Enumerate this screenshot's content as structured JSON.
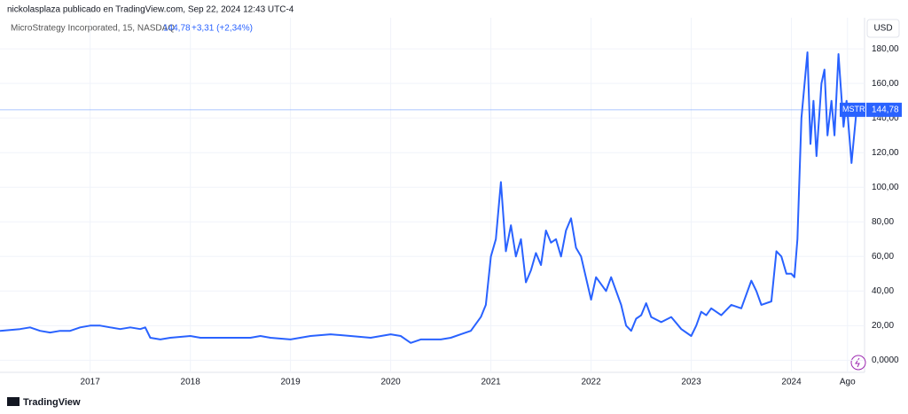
{
  "header": {
    "publisher": "nickolasplaza publicado en TradingView.com, Sep 22, 2024 12:43 UTC-4",
    "instrument": "MicroStrategy Incorporated, 15, NASDAQ",
    "last": "144,78",
    "change": "+3,31 (+2,34%)",
    "currency": "USD",
    "symbol": "MSTR",
    "price_label": "144,78",
    "brand": "TradingView"
  },
  "chart_data": {
    "type": "line",
    "color": "#2962ff",
    "grid": true,
    "last_value": 144.78,
    "xlim": [
      2016.1,
      2024.73
    ],
    "xticks": [
      2017,
      2018,
      2019,
      2020,
      2021,
      2022,
      2023,
      2024,
      {
        "value": 2024.56,
        "label": "Ago"
      }
    ],
    "ylim": [
      -7,
      198
    ],
    "yticks": [
      {
        "value": 0,
        "label": "0,0000"
      },
      {
        "value": 20,
        "label": "20,00"
      },
      {
        "value": 40,
        "label": "40,00"
      },
      {
        "value": 60,
        "label": "60,00"
      },
      {
        "value": 80,
        "label": "80,00"
      },
      {
        "value": 100,
        "label": "100,00"
      },
      {
        "value": 120,
        "label": "120,00"
      },
      {
        "value": 140,
        "label": "140,00"
      },
      {
        "value": 160,
        "label": "160,00"
      },
      {
        "value": 180,
        "label": "180,00"
      }
    ],
    "x": [
      2016.1,
      2016.3,
      2016.4,
      2016.5,
      2016.6,
      2016.7,
      2016.8,
      2016.9,
      2017.0,
      2017.1,
      2017.2,
      2017.3,
      2017.4,
      2017.5,
      2017.55,
      2017.6,
      2017.7,
      2017.8,
      2018.0,
      2018.1,
      2018.2,
      2018.4,
      2018.6,
      2018.7,
      2018.8,
      2019.0,
      2019.2,
      2019.4,
      2019.6,
      2019.8,
      2020.0,
      2020.1,
      2020.2,
      2020.3,
      2020.5,
      2020.6,
      2020.7,
      2020.8,
      2020.9,
      2020.95,
      2021.0,
      2021.05,
      2021.1,
      2021.15,
      2021.2,
      2021.25,
      2021.3,
      2021.35,
      2021.4,
      2021.45,
      2021.5,
      2021.55,
      2021.6,
      2021.65,
      2021.7,
      2021.75,
      2021.8,
      2021.85,
      2021.9,
      2022.0,
      2022.05,
      2022.15,
      2022.2,
      2022.3,
      2022.35,
      2022.4,
      2022.45,
      2022.5,
      2022.55,
      2022.6,
      2022.7,
      2022.8,
      2022.9,
      2023.0,
      2023.05,
      2023.1,
      2023.15,
      2023.2,
      2023.3,
      2023.4,
      2023.5,
      2023.6,
      2023.65,
      2023.7,
      2023.8,
      2023.85,
      2023.9,
      2023.95,
      2024.0,
      2024.03,
      2024.06,
      2024.1,
      2024.16,
      2024.19,
      2024.22,
      2024.25,
      2024.3,
      2024.33,
      2024.36,
      2024.4,
      2024.43,
      2024.47,
      2024.52,
      2024.55,
      2024.6,
      2024.65
    ],
    "values": [
      17,
      18,
      19,
      17,
      16,
      17,
      17,
      19,
      20,
      20,
      19,
      18,
      19,
      18,
      19,
      13,
      12,
      13,
      14,
      13,
      13,
      13,
      13,
      14,
      13,
      12,
      14,
      15,
      14,
      13,
      15,
      14,
      10,
      12,
      12,
      13,
      15,
      17,
      25,
      32,
      60,
      70,
      103,
      63,
      78,
      60,
      70,
      45,
      52,
      62,
      55,
      75,
      68,
      70,
      60,
      75,
      82,
      65,
      60,
      35,
      48,
      40,
      48,
      32,
      20,
      17,
      24,
      26,
      33,
      25,
      22,
      25,
      18,
      14,
      20,
      28,
      26,
      30,
      26,
      32,
      30,
      46,
      40,
      32,
      34,
      63,
      60,
      50,
      50,
      48,
      70,
      140,
      178,
      125,
      150,
      118,
      160,
      168,
      130,
      150,
      130,
      177,
      135,
      150,
      114,
      144.78
    ]
  }
}
